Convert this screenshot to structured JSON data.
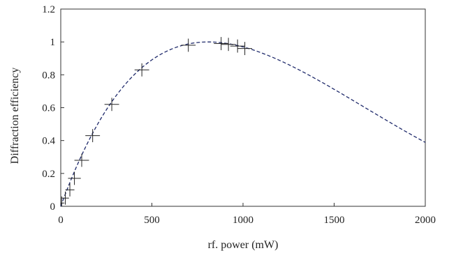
{
  "chart_data": {
    "type": "scatter",
    "title": "",
    "xlabel": "rf. power (mW)",
    "ylabel": "Diffraction efficiency",
    "xlim": [
      0,
      2000
    ],
    "ylim": [
      0,
      1.2
    ],
    "x_ticks": [
      "0",
      "500",
      "1000",
      "1500",
      "2000"
    ],
    "y_ticks": [
      "0",
      "0.2",
      "0.4",
      "0.6",
      "0.8",
      "1",
      "1.2"
    ],
    "grid": false,
    "series": [
      {
        "marker": "cross-error-bar",
        "points": [
          {
            "x": 5,
            "y": 0.02,
            "xerr": 15,
            "yerr": 0.04
          },
          {
            "x": 25,
            "y": 0.05,
            "xerr": 20,
            "yerr": 0.04
          },
          {
            "x": 50,
            "y": 0.1,
            "xerr": 25,
            "yerr": 0.04
          },
          {
            "x": 75,
            "y": 0.17,
            "xerr": 35,
            "yerr": 0.04
          },
          {
            "x": 115,
            "y": 0.28,
            "xerr": 40,
            "yerr": 0.04
          },
          {
            "x": 175,
            "y": 0.43,
            "xerr": 40,
            "yerr": 0.04
          },
          {
            "x": 280,
            "y": 0.62,
            "xerr": 40,
            "yerr": 0.04
          },
          {
            "x": 445,
            "y": 0.83,
            "xerr": 40,
            "yerr": 0.04
          },
          {
            "x": 700,
            "y": 0.98,
            "xerr": 40,
            "yerr": 0.04
          },
          {
            "x": 880,
            "y": 0.99,
            "xerr": 40,
            "yerr": 0.04
          },
          {
            "x": 920,
            "y": 0.985,
            "xerr": 40,
            "yerr": 0.04
          },
          {
            "x": 970,
            "y": 0.975,
            "xerr": 40,
            "yerr": 0.04
          },
          {
            "x": 1010,
            "y": 0.96,
            "xerr": 40,
            "yerr": 0.04
          }
        ]
      },
      {
        "line_style": "dashed",
        "color": "#1f2a6b",
        "fit": "sin^2",
        "peak_x": 810,
        "peak_y": 1.0
      }
    ]
  }
}
